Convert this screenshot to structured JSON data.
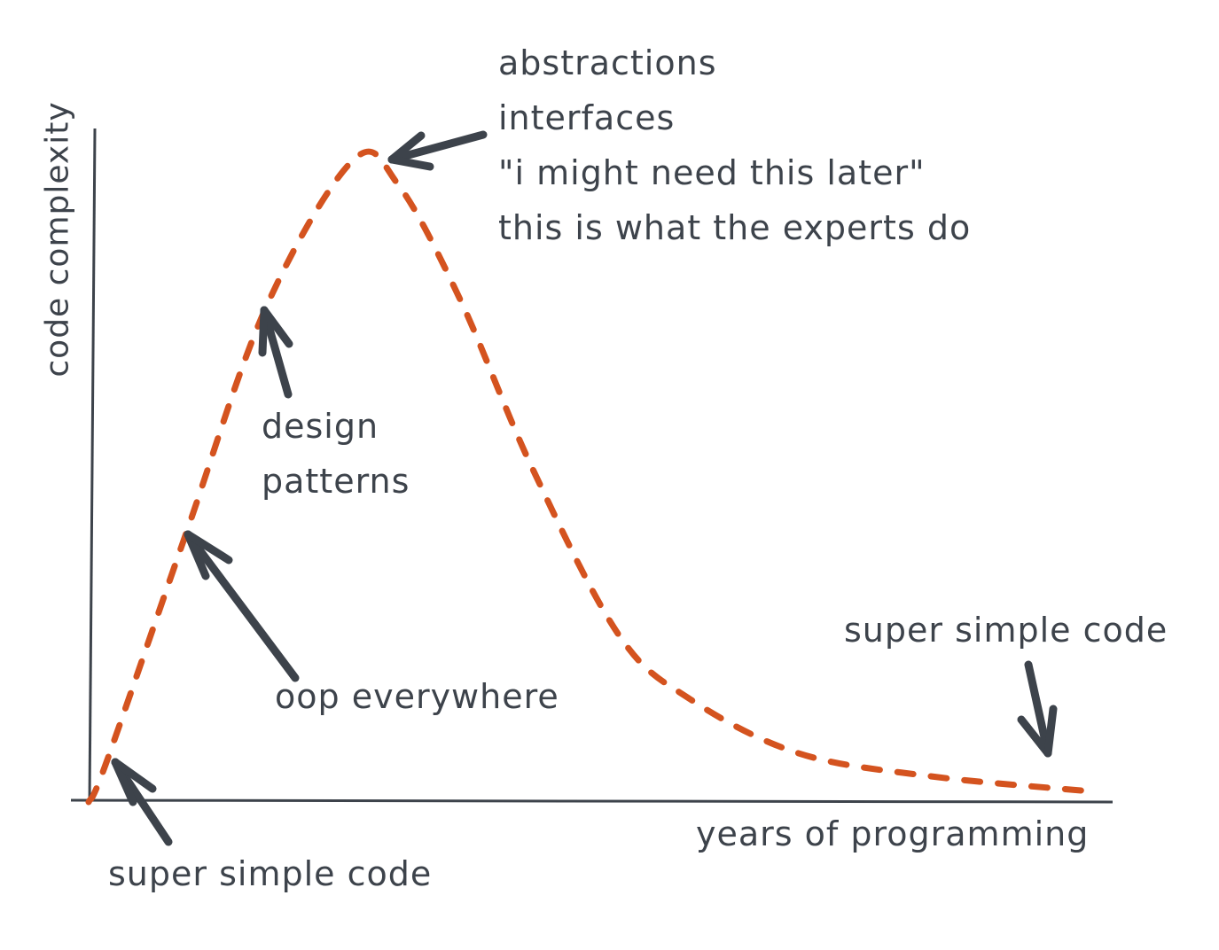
{
  "chart_data": {
    "type": "line",
    "title": "",
    "xlabel": "years of programming",
    "ylabel": "code complexity",
    "xlim": [
      0,
      100
    ],
    "ylim": [
      0,
      100
    ],
    "grid": false,
    "line_style": "dashed",
    "series": [
      {
        "x": [
          0,
          1.7,
          9.6,
          17.4,
          26,
          30.4,
          36.5,
          43.5,
          52,
          59,
          69.6,
          82.6,
          98
        ],
        "y": [
          0,
          6,
          42,
          77,
          100,
          96,
          78,
          52,
          26,
          16,
          7.6,
          4,
          1.7
        ],
        "color": "#d4531f"
      }
    ],
    "annotations": {
      "peak": [
        "abstractions",
        "interfaces",
        "\"i might need this later\"",
        "this is what the experts do"
      ],
      "design": [
        "design",
        "patterns"
      ],
      "oop": "oop everywhere",
      "start": "super simple code",
      "end": "super simple code"
    },
    "colors": {
      "curve": "#d4531f",
      "ink": "#3d434b"
    }
  }
}
